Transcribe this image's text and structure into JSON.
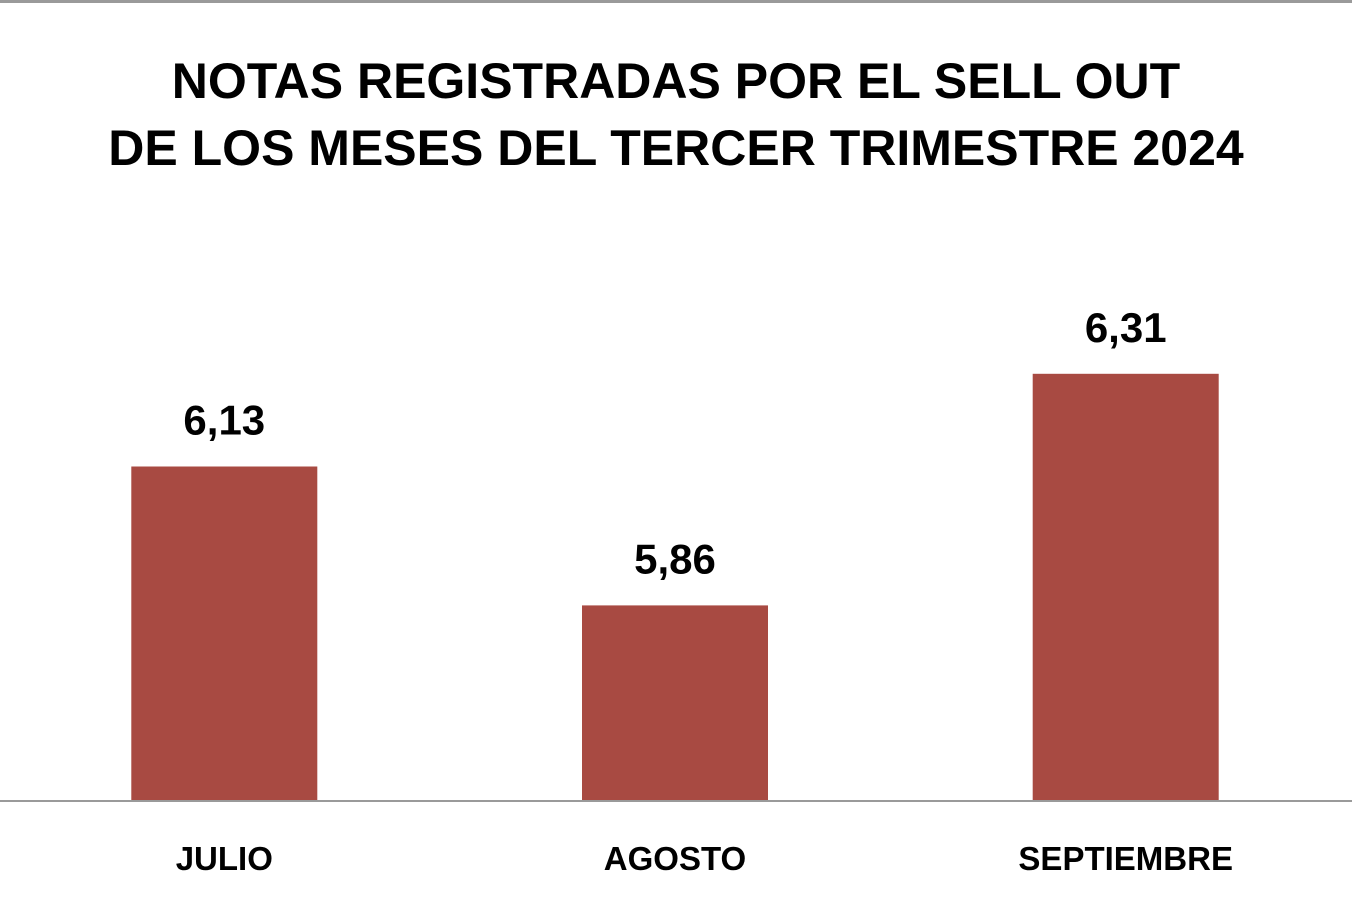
{
  "chart_data": {
    "type": "bar",
    "title_lines": [
      "NOTAS REGISTRADAS POR EL SELL OUT",
      "DE LOS MESES DEL TERCER TRIMESTRE 2024"
    ],
    "categories": [
      "JULIO",
      "AGOSTO",
      "SEPTIEMBRE"
    ],
    "values": [
      6.13,
      5.86,
      6.31
    ],
    "value_labels": [
      "6,13",
      "5,86",
      "6,31"
    ],
    "xlabel": "",
    "ylabel": "",
    "ylim": [
      5.48,
      6.57
    ],
    "grid": false,
    "legend": "none",
    "bar_color": "#a84a42",
    "axis_color": "#9a9a9a"
  }
}
